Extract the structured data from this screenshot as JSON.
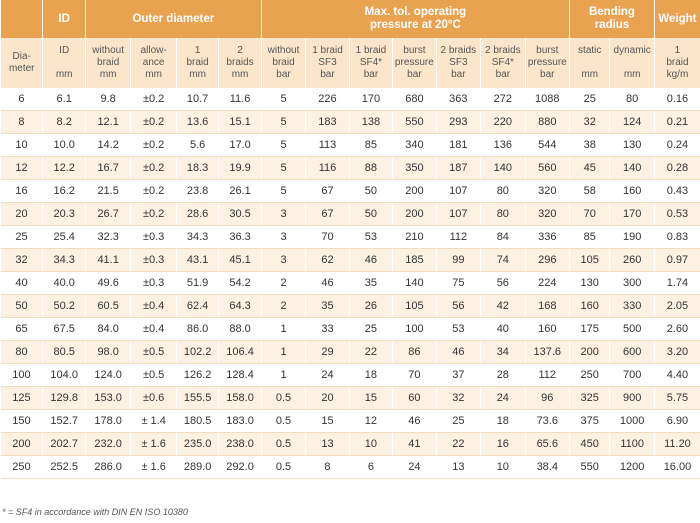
{
  "header": {
    "group_id": "ID",
    "group_outer": "Outer diameter",
    "group_pressure_1": "Max. tol. operating",
    "group_pressure_2": "pressure at 20°C",
    "group_bending_1": "Bending",
    "group_bending_2": "radius",
    "group_weight": "Weight"
  },
  "subheader": [
    [
      "Dia-",
      "meter",
      ""
    ],
    [
      "ID",
      "",
      "mm"
    ],
    [
      "without",
      "braid",
      "mm"
    ],
    [
      "allow-",
      "ance",
      "mm"
    ],
    [
      "1",
      "braid",
      "mm"
    ],
    [
      "2",
      "braids",
      "mm"
    ],
    [
      "without",
      "braid",
      "bar"
    ],
    [
      "1 braid",
      "SF3",
      "bar"
    ],
    [
      "1 braid",
      "SF4*",
      "bar"
    ],
    [
      "burst",
      "pressure",
      "bar"
    ],
    [
      "2 braids",
      "SF3",
      "bar"
    ],
    [
      "2 braids",
      "SF4*",
      "bar"
    ],
    [
      "burst",
      "pressure",
      "bar"
    ],
    [
      "static",
      "",
      "mm"
    ],
    [
      "dynamic",
      "",
      "mm"
    ],
    [
      "1",
      "braid",
      "kg/m"
    ]
  ],
  "rows": [
    [
      "6",
      "6.1",
      "9.8",
      "±0.2",
      "10.7",
      "11.6",
      "5",
      "226",
      "170",
      "680",
      "363",
      "272",
      "1088",
      "25",
      "80",
      "0.16"
    ],
    [
      "8",
      "8.2",
      "12.1",
      "±0.2",
      "13.6",
      "15.1",
      "5",
      "183",
      "138",
      "550",
      "293",
      "220",
      "880",
      "32",
      "124",
      "0.21"
    ],
    [
      "10",
      "10.0",
      "14.2",
      "±0.2",
      "5.6",
      "17.0",
      "5",
      "113",
      "85",
      "340",
      "181",
      "136",
      "544",
      "38",
      "130",
      "0.24"
    ],
    [
      "12",
      "12.2",
      "16.7",
      "±0.2",
      "18.3",
      "19.9",
      "5",
      "116",
      "88",
      "350",
      "187",
      "140",
      "560",
      "45",
      "140",
      "0.28"
    ],
    [
      "16",
      "16.2",
      "21.5",
      "±0.2",
      "23.8",
      "26.1",
      "5",
      "67",
      "50",
      "200",
      "107",
      "80",
      "320",
      "58",
      "160",
      "0.43"
    ],
    [
      "20",
      "20.3",
      "26.7",
      "±0.2",
      "28.6",
      "30.5",
      "3",
      "67",
      "50",
      "200",
      "107",
      "80",
      "320",
      "70",
      "170",
      "0.53"
    ],
    [
      "25",
      "25.4",
      "32.3",
      "±0.3",
      "34.3",
      "36.3",
      "3",
      "70",
      "53",
      "210",
      "112",
      "84",
      "336",
      "85",
      "190",
      "0.83"
    ],
    [
      "32",
      "34.3",
      "41.1",
      "±0.3",
      "43.1",
      "45.1",
      "3",
      "62",
      "46",
      "185",
      "99",
      "74",
      "296",
      "105",
      "260",
      "0.97"
    ],
    [
      "40",
      "40.0",
      "49.6",
      "±0.3",
      "51.9",
      "54.2",
      "2",
      "46",
      "35",
      "140",
      "75",
      "56",
      "224",
      "130",
      "300",
      "1.74"
    ],
    [
      "50",
      "50.2",
      "60.5",
      "±0.4",
      "62.4",
      "64.3",
      "2",
      "35",
      "26",
      "105",
      "56",
      "42",
      "168",
      "160",
      "330",
      "2.05"
    ],
    [
      "65",
      "67.5",
      "84.0",
      "±0.4",
      "86.0",
      "88.0",
      "1",
      "33",
      "25",
      "100",
      "53",
      "40",
      "160",
      "175",
      "500",
      "2.60"
    ],
    [
      "80",
      "80.5",
      "98.0",
      "±0.5",
      "102.2",
      "106.4",
      "1",
      "29",
      "22",
      "86",
      "46",
      "34",
      "137.6",
      "200",
      "600",
      "3.20"
    ],
    [
      "100",
      "104.0",
      "124.0",
      "±0.5",
      "126.2",
      "128.4",
      "1",
      "24",
      "18",
      "70",
      "37",
      "28",
      "112",
      "250",
      "700",
      "4.40"
    ],
    [
      "125",
      "129.8",
      "153.0",
      "±0.6",
      "155.5",
      "158.0",
      "0.5",
      "20",
      "15",
      "60",
      "32",
      "24",
      "96",
      "325",
      "900",
      "5.75"
    ],
    [
      "150",
      "152.7",
      "178.0",
      "± 1.4",
      "180.5",
      "183.0",
      "0.5",
      "15",
      "12",
      "46",
      "25",
      "18",
      "73.6",
      "375",
      "1000",
      "6.90"
    ],
    [
      "200",
      "202.7",
      "232.0",
      "± 1.6",
      "235.0",
      "238.0",
      "0.5",
      "13",
      "10",
      "41",
      "22",
      "16",
      "65.6",
      "450",
      "1100",
      "11.20"
    ],
    [
      "250",
      "252.5",
      "286.0",
      "± 1.6",
      "289.0",
      "292.0",
      "0.5",
      "8",
      "6",
      "24",
      "13",
      "10",
      "38.4",
      "550",
      "1200",
      "16.00"
    ]
  ],
  "footnote": "* = SF4 in accordance with DIN EN ISO 10380"
}
